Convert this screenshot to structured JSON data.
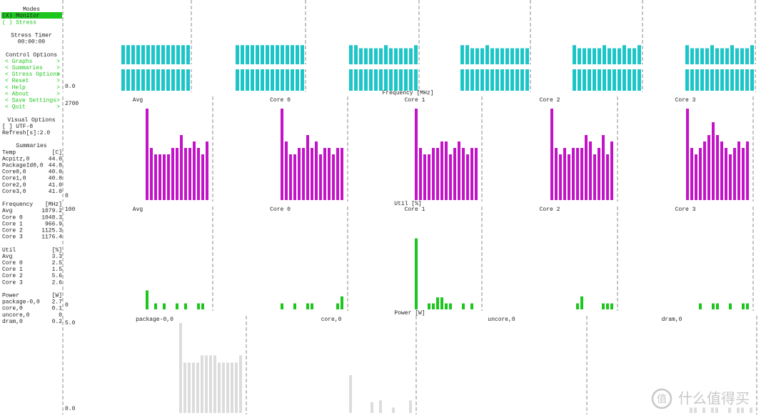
{
  "sidebar": {
    "modes": {
      "title": "Modes",
      "items": [
        "(X) Monitor",
        "( ) Stress"
      ]
    },
    "stress_timer": {
      "title": "Stress Timer",
      "value": "00:00:00"
    },
    "control_options": {
      "title": "Control Options",
      "items": [
        {
          "label": "< Graphs",
          "arrow": ">"
        },
        {
          "label": "< Summaries",
          "arrow": ">"
        },
        {
          "label": "< Stress Options",
          "arrow": ">"
        },
        {
          "label": "< Reset",
          "arrow": ">"
        },
        {
          "label": "< Help",
          "arrow": ">"
        },
        {
          "label": "< About",
          "arrow": ">"
        },
        {
          "label": "< Save Settings",
          "arrow": ">"
        },
        {
          "label": "< Quit",
          "arrow": ">"
        }
      ]
    },
    "visual_options": {
      "title": "Visual Options",
      "items": [
        "[ ] UTF-8",
        "Refresh[s]:2.0"
      ]
    },
    "summaries": {
      "title": "Summaries",
      "sections": [
        {
          "name": "Temp",
          "unit": "[C]",
          "rows": [
            [
              "Acpitz,0",
              "44.0"
            ],
            [
              "PackageId0,0",
              "44.0"
            ],
            [
              "Core0,0",
              "40.0"
            ],
            [
              "Core1,0",
              "40.0"
            ],
            [
              "Core2,0",
              "41.0"
            ],
            [
              "Core3,0",
              "41.0"
            ]
          ]
        },
        {
          "name": "Frequency",
          "unit": "[MHz]",
          "rows": [
            [
              "Avg",
              "1079.2"
            ],
            [
              "Core 0",
              "1048.3"
            ],
            [
              "Core 1",
              "966.9"
            ],
            [
              "Core 2",
              "1125.3"
            ],
            [
              "Core 3",
              "1176.4"
            ]
          ]
        },
        {
          "name": "Util",
          "unit": "[%]",
          "rows": [
            [
              "Avg",
              "3.3"
            ],
            [
              "Core 0",
              "2.5"
            ],
            [
              "Core 1",
              "1.5"
            ],
            [
              "Core 2",
              "5.6"
            ],
            [
              "Core 3",
              "2.6"
            ]
          ]
        },
        {
          "name": "Power",
          "unit": "[W]",
          "rows": [
            [
              "package-0,0",
              "2.7"
            ],
            [
              "core,0",
              "0.1"
            ],
            [
              "uncore,0",
              "0"
            ],
            [
              "dram,0",
              "0.2"
            ]
          ]
        }
      ]
    }
  },
  "graphs": [
    {
      "color": "#1cc6c8",
      "yticks": [
        {
          "value": 0,
          "label": "0.0"
        }
      ],
      "panels": [
        {
          "values": [
            44,
            44,
            44,
            44,
            44,
            44,
            44,
            44,
            44,
            44,
            44,
            44,
            44,
            44
          ]
        },
        {
          "values": [
            44,
            44,
            44,
            44,
            44,
            44,
            44,
            44,
            44,
            44,
            44,
            44,
            44,
            44
          ]
        },
        {
          "values": [
            44,
            44,
            41,
            41,
            41,
            41,
            41,
            44,
            41,
            41,
            41,
            41,
            41,
            44
          ]
        },
        {
          "values": [
            44,
            44,
            41,
            41,
            41,
            44,
            41,
            41,
            41,
            41,
            41,
            41,
            41,
            41
          ]
        },
        {
          "values": [
            44,
            41,
            41,
            41,
            41,
            41,
            44,
            41,
            41,
            41,
            44,
            41,
            41,
            44
          ]
        },
        {
          "values": [
            44,
            41,
            41,
            41,
            41,
            44,
            41,
            41,
            41,
            44,
            41,
            41,
            41,
            44
          ]
        }
      ]
    },
    {
      "title": "Frequency [MHz]",
      "color": "#c313c8",
      "yticks": [
        2700,
        0
      ],
      "panels": [
        {
          "label": "Avg",
          "values": [
            2560,
            1460,
            1280,
            1280,
            1280,
            1280,
            1460,
            1460,
            1820,
            1460,
            1460,
            1640,
            1460,
            1280,
            1640
          ]
        },
        {
          "label": "Core 0",
          "values": [
            2560,
            1640,
            1280,
            1280,
            1460,
            1460,
            1820,
            1460,
            1640,
            1280,
            1460,
            1460,
            1280,
            1460,
            1460
          ]
        },
        {
          "label": "Core 1",
          "values": [
            2560,
            1460,
            1280,
            1280,
            1460,
            1460,
            1640,
            1640,
            1280,
            1460,
            1640,
            1460,
            1280,
            1460,
            1460
          ]
        },
        {
          "label": "Core 2",
          "values": [
            2560,
            1460,
            1280,
            1460,
            1280,
            1460,
            1460,
            1460,
            1820,
            1640,
            1280,
            1460,
            1820,
            1280,
            1640
          ]
        },
        {
          "label": "Core 3",
          "values": [
            2560,
            1460,
            1280,
            1460,
            1640,
            1820,
            2180,
            1820,
            1640,
            1460,
            1280,
            1460,
            1640,
            1460,
            1640
          ]
        }
      ]
    },
    {
      "title": "Util [%]",
      "color": "#1ec51e",
      "yticks": [
        100,
        0
      ],
      "panels": [
        {
          "label": "Avg",
          "values": [
            19,
            0,
            6,
            0,
            6,
            0,
            0,
            6,
            0,
            6,
            0,
            0,
            6,
            6,
            0
          ]
        },
        {
          "label": "Core 0",
          "values": [
            6,
            0,
            0,
            6,
            0,
            0,
            6,
            6,
            0,
            0,
            0,
            0,
            0,
            6,
            13
          ]
        },
        {
          "label": "Core 1",
          "values": [
            71,
            0,
            0,
            6,
            6,
            12,
            12,
            6,
            6,
            0,
            0,
            6,
            0,
            6,
            0
          ]
        },
        {
          "label": "Core 2",
          "values": [
            0,
            0,
            0,
            0,
            0,
            0,
            6,
            13,
            0,
            0,
            0,
            0,
            6,
            6,
            6
          ]
        },
        {
          "label": "Core 3",
          "values": [
            0,
            0,
            0,
            6,
            0,
            0,
            6,
            6,
            0,
            0,
            6,
            0,
            0,
            6,
            6
          ]
        }
      ]
    },
    {
      "title": "Power [W]",
      "color": "#dcdcdc",
      "yticks": [
        {
          "value": 5,
          "label": "5.0"
        },
        {
          "value": 0,
          "label": "0.0"
        }
      ],
      "panels": [
        {
          "label": "package-0,0",
          "values": [
            5.0,
            2.8,
            2.8,
            2.8,
            2.8,
            3.2,
            3.2,
            3.2,
            3.2,
            2.8,
            2.8,
            2.8,
            2.8,
            2.8,
            3.2
          ]
        },
        {
          "label": "core,0",
          "values": [
            2.1,
            0,
            0,
            0,
            0,
            0.6,
            0,
            0.7,
            0,
            0,
            0.3,
            0,
            0,
            0,
            0.7
          ]
        },
        {
          "label": "uncore,0",
          "values": [
            0,
            0,
            0,
            0,
            0,
            0,
            0,
            0,
            0,
            0,
            0,
            0,
            0,
            0,
            0
          ]
        },
        {
          "label": "dram,0",
          "values": [
            0.3,
            0.3,
            0,
            0.3,
            0,
            0.3,
            0.3,
            0,
            0,
            0.3,
            0,
            0.3,
            0.3,
            0,
            0.3
          ]
        }
      ]
    }
  ],
  "watermark": {
    "logo": "值",
    "text": "什么值得买"
  }
}
